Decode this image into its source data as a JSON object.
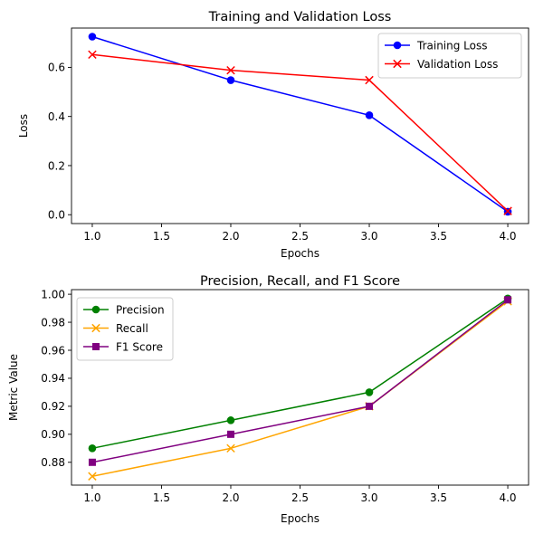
{
  "chart_data": [
    {
      "type": "line",
      "title": "Training and Validation Loss",
      "xlabel": "Epochs",
      "ylabel": "Loss",
      "x": [
        1,
        2,
        3,
        4
      ],
      "xlim": [
        0.85,
        4.15
      ],
      "ylim": [
        -0.036,
        0.76
      ],
      "xticks": [
        "1.0",
        "1.5",
        "2.0",
        "2.5",
        "3.0",
        "3.5",
        "4.0"
      ],
      "yticks": [
        "0.0",
        "0.2",
        "0.4",
        "0.6"
      ],
      "grid": false,
      "legend_position": "top-right",
      "series": [
        {
          "name": "Training Loss",
          "color": "#0000ff",
          "marker": "circle",
          "values": [
            0.725,
            0.548,
            0.405,
            0.012
          ]
        },
        {
          "name": "Validation Loss",
          "color": "#ff0000",
          "marker": "x",
          "values": [
            0.652,
            0.588,
            0.548,
            0.015
          ]
        }
      ]
    },
    {
      "type": "line",
      "title": "Precision, Recall, and F1 Score",
      "xlabel": "Epochs",
      "ylabel": "Metric Value",
      "x": [
        1,
        2,
        3,
        4
      ],
      "xlim": [
        0.85,
        4.15
      ],
      "ylim": [
        0.8637,
        1.0033
      ],
      "xticks": [
        "1.0",
        "1.5",
        "2.0",
        "2.5",
        "3.0",
        "3.5",
        "4.0"
      ],
      "yticks": [
        "0.88",
        "0.90",
        "0.92",
        "0.94",
        "0.96",
        "0.98",
        "1.00"
      ],
      "grid": false,
      "legend_position": "top-left",
      "series": [
        {
          "name": "Precision",
          "color": "#008000",
          "marker": "circle",
          "values": [
            0.89,
            0.91,
            0.93,
            0.997
          ]
        },
        {
          "name": "Recall",
          "color": "#ffa500",
          "marker": "x",
          "values": [
            0.87,
            0.89,
            0.92,
            0.995
          ]
        },
        {
          "name": "F1 Score",
          "color": "#800080",
          "marker": "square",
          "values": [
            0.88,
            0.9,
            0.92,
            0.996
          ]
        }
      ]
    }
  ]
}
